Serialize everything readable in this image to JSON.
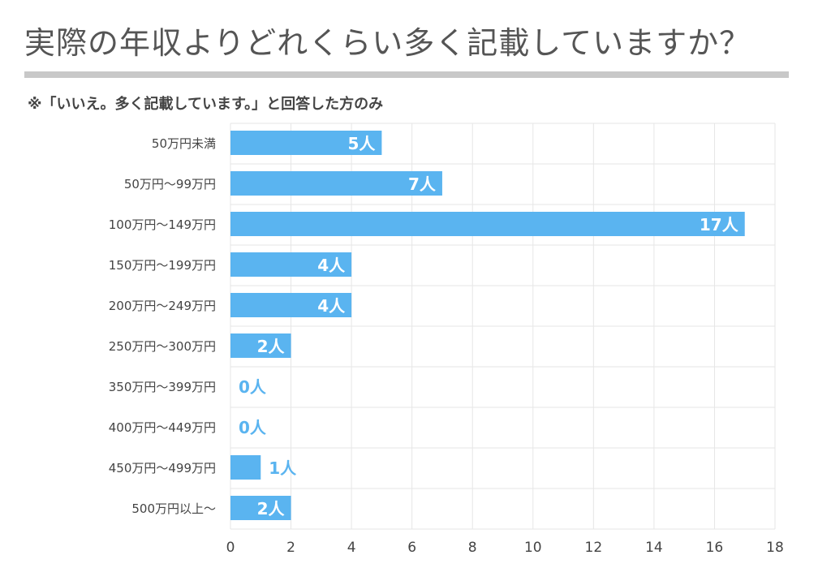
{
  "title": "実際の年収よりどれくらい多く記載していますか？",
  "subtitle": "※「いいえ。多く記載しています。」と回答した方のみ",
  "colors": {
    "bar": "#5ab4f0",
    "bar_label_inside": "#ffffff",
    "bar_label_outside": "#5ab4f0",
    "grid": "#e6e6e6",
    "rule": "#c8c8c8"
  },
  "chart_data": {
    "type": "bar",
    "orientation": "horizontal",
    "categories": [
      "50万円未満",
      "50万円〜99万円",
      "100万円〜149万円",
      "150万円〜199万円",
      "200万円〜249万円",
      "250万円〜300万円",
      "350万円〜399万円",
      "400万円〜449万円",
      "450万円〜499万円",
      "500万円以上〜"
    ],
    "values": [
      5,
      7,
      17,
      4,
      4,
      2,
      0,
      0,
      1,
      2
    ],
    "data_labels": [
      "5人",
      "7人",
      "17人",
      "4人",
      "4人",
      "2人",
      "0人",
      "0人",
      "1人",
      "2人"
    ],
    "xlim": [
      0,
      18
    ],
    "xticks": [
      "0",
      "2",
      "4",
      "6",
      "8",
      "10",
      "12",
      "14",
      "16",
      "18"
    ],
    "grid": true
  }
}
